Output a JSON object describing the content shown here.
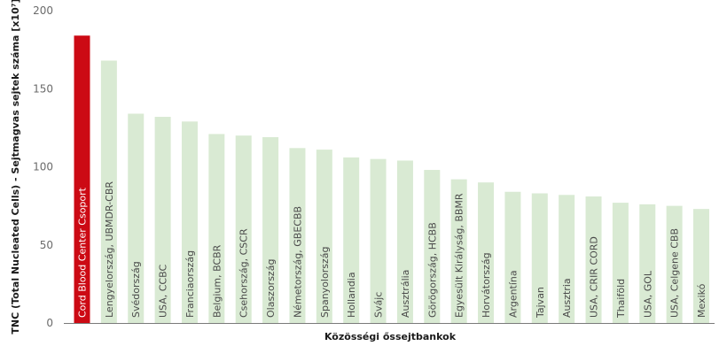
{
  "chart_data": {
    "type": "bar",
    "xlabel": "Közösségi őssejtbankok",
    "ylabel": "TNC (Total Nucleated Cells) - Sejtmagvas sejtek száma [x10⁷]",
    "ylim": [
      0,
      200
    ],
    "yticks": [
      0,
      50,
      100,
      150,
      200
    ],
    "grid": false,
    "categories": [
      "Cord Blood Center Csoport",
      "Lengyelország, UBMDR-CBR",
      "Svédország",
      "USA, CCBC",
      "Franciaország",
      "Belgium, BCBR",
      "Csehország, CSCR",
      "Olaszország",
      "Németország, GBECBB",
      "Spanyolország",
      "Hollandia",
      "Svájc",
      "Ausztrália",
      "Görögország, HCBB",
      "Egyesült Királyság, BBMR",
      "Horvátország",
      "Argentína",
      "Tajvan",
      "Ausztria",
      "USA, CRIR CORD",
      "Thaiföld",
      "USA, GOL",
      "USA, Celgene  CBB",
      "Mexikó"
    ],
    "values": [
      184,
      168,
      134,
      132,
      129,
      121,
      120,
      119,
      112,
      111,
      106,
      105,
      104,
      98,
      92,
      90,
      84,
      83,
      82,
      81,
      77,
      76,
      75,
      73
    ],
    "colors": {
      "highlight": "#cc0a14",
      "bar": "#d9ead3",
      "axis": "#7a7a7a"
    }
  }
}
